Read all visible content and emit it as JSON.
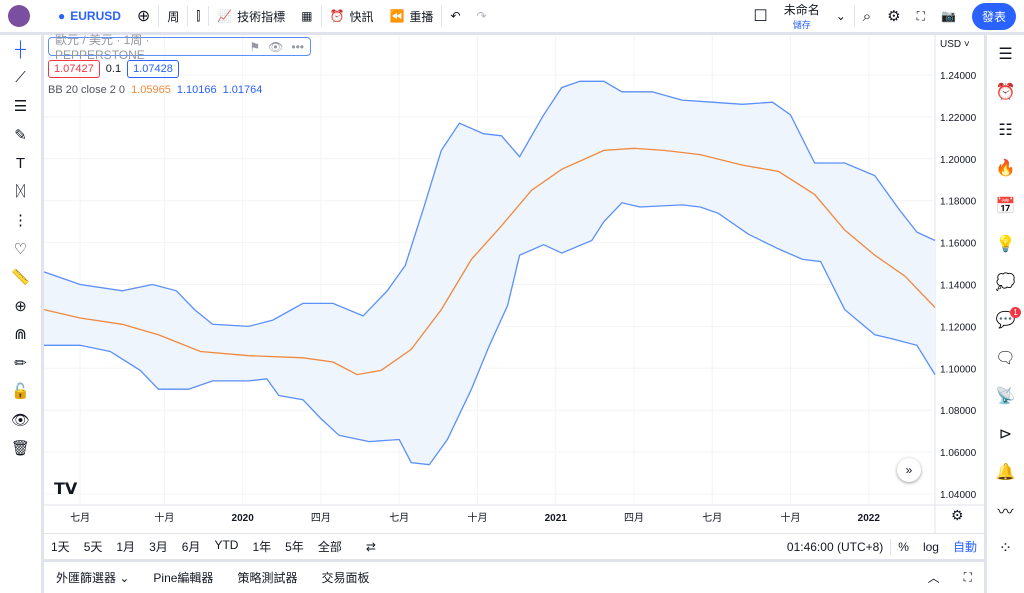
{
  "topbar": {
    "symbol": "EURUSD",
    "interval": "周",
    "indicators": "技術指標",
    "alert": "快訊",
    "replay": "重播",
    "layout_name": "未命名",
    "save": "儲存",
    "publish": "發表"
  },
  "legend": {
    "title": "歐元 / 美元 · 1周 · PEPPERSTONE",
    "bid": "1.07427",
    "spread": "0.1",
    "ask": "1.07428",
    "bb_label": "BB 20 close 2 0",
    "bb_mid": "1.05965",
    "bb_upper": "1.10166",
    "bb_lower": "1.01764"
  },
  "currency": "USD",
  "range_buttons": [
    "1天",
    "5天",
    "1月",
    "3月",
    "6月",
    "YTD",
    "1年",
    "5年",
    "全部"
  ],
  "time": "01:46:00 (UTC+8)",
  "scale": {
    "pct": "%",
    "log": "log",
    "auto": "自動"
  },
  "bottom_tabs": [
    "外匯篩選器",
    "Pine編輯器",
    "策略測試器",
    "交易面板"
  ],
  "notification_count": "1",
  "colors": {
    "upper": "#5b8ff9",
    "lower": "#5b8ff9",
    "middle": "#f0883e",
    "fill": "#eef5fc",
    "accent": "#2962ff"
  },
  "chart_data": {
    "type": "line",
    "title": "BB 20 close 2 0",
    "ylim": [
      1.03,
      1.245
    ],
    "xrange_weeks": [
      0,
      148
    ],
    "yticks": [
      "1.24000",
      "1.22000",
      "1.20000",
      "1.18000",
      "1.16000",
      "1.14000",
      "1.12000",
      "1.10000",
      "1.08000",
      "1.06000",
      "1.04000"
    ],
    "xticks": [
      {
        "w": 6,
        "label": "七月"
      },
      {
        "w": 20,
        "label": "十月"
      },
      {
        "w": 33,
        "label": "2020"
      },
      {
        "w": 46,
        "label": "四月"
      },
      {
        "w": 59,
        "label": "七月"
      },
      {
        "w": 72,
        "label": "十月"
      },
      {
        "w": 85,
        "label": "2021"
      },
      {
        "w": 98,
        "label": "四月"
      },
      {
        "w": 111,
        "label": "七月"
      },
      {
        "w": 124,
        "label": "十月"
      },
      {
        "w": 137,
        "label": "2022"
      }
    ],
    "series": [
      {
        "name": "upper",
        "w": [
          0,
          6,
          13,
          18,
          22,
          25,
          28,
          34,
          38,
          43,
          48,
          53,
          57,
          60,
          63,
          66,
          69,
          73,
          76,
          79,
          83,
          86,
          89,
          93,
          96,
          101,
          106,
          111,
          116,
          121,
          124,
          128,
          133,
          138,
          142,
          145,
          148
        ],
        "v": [
          1.146,
          1.14,
          1.137,
          1.14,
          1.137,
          1.128,
          1.121,
          1.12,
          1.123,
          1.131,
          1.131,
          1.125,
          1.137,
          1.149,
          1.176,
          1.204,
          1.217,
          1.212,
          1.211,
          1.201,
          1.221,
          1.234,
          1.237,
          1.237,
          1.232,
          1.232,
          1.228,
          1.227,
          1.226,
          1.227,
          1.221,
          1.198,
          1.198,
          1.192,
          1.176,
          1.165,
          1.161
        ]
      },
      {
        "name": "middle",
        "w": [
          0,
          6,
          13,
          19,
          26,
          34,
          43,
          48,
          52,
          56,
          61,
          66,
          71,
          76,
          81,
          86,
          93,
          98,
          103,
          109,
          116,
          122,
          128,
          133,
          138,
          143,
          148
        ],
        "v": [
          1.128,
          1.124,
          1.121,
          1.116,
          1.108,
          1.106,
          1.105,
          1.103,
          1.097,
          1.099,
          1.109,
          1.128,
          1.152,
          1.168,
          1.185,
          1.195,
          1.204,
          1.205,
          1.204,
          1.202,
          1.197,
          1.194,
          1.183,
          1.166,
          1.154,
          1.144,
          1.129
        ]
      },
      {
        "name": "lower",
        "w": [
          0,
          6,
          11,
          16,
          19,
          24,
          28,
          34,
          37,
          39,
          43,
          46,
          49,
          54,
          59,
          61,
          64,
          67,
          71,
          74,
          77,
          79,
          83,
          86,
          91,
          93,
          96,
          99,
          106,
          109,
          112,
          117,
          122,
          126,
          129,
          133,
          138,
          141,
          145,
          148
        ],
        "v": [
          1.111,
          1.111,
          1.108,
          1.099,
          1.09,
          1.09,
          1.094,
          1.094,
          1.095,
          1.087,
          1.085,
          1.076,
          1.068,
          1.065,
          1.066,
          1.055,
          1.054,
          1.066,
          1.09,
          1.111,
          1.13,
          1.154,
          1.159,
          1.155,
          1.161,
          1.17,
          1.179,
          1.177,
          1.178,
          1.177,
          1.174,
          1.164,
          1.157,
          1.152,
          1.151,
          1.128,
          1.116,
          1.114,
          1.111,
          1.097
        ]
      }
    ]
  }
}
